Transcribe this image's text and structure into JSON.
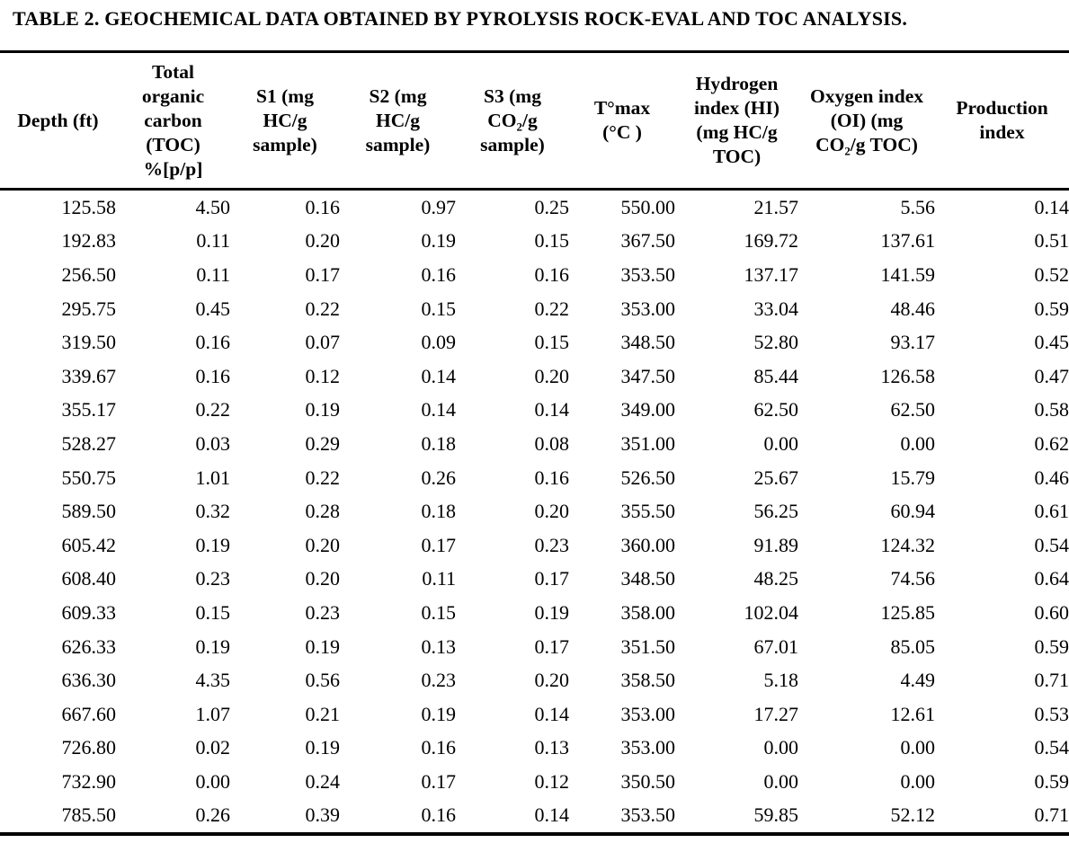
{
  "colors": {
    "background": "#ffffff",
    "text": "#000000",
    "rule": "#000000"
  },
  "table": {
    "title": "TABLE 2. GEOCHEMICAL DATA OBTAINED BY PYROLYSIS ROCK-EVAL AND TOC ANALYSIS.",
    "columns": [
      {
        "label": "Depth (ft)"
      },
      {
        "label": "Total\norganic\ncarbon\n(TOC)\n%[p/p]"
      },
      {
        "label": "S1 (mg\nHC/g\nsample)"
      },
      {
        "label": "S2 (mg\nHC/g\nsample)"
      },
      {
        "label": "S3 (mg\nCO₂/g\nsample)"
      },
      {
        "label": "T°max\n(°C )"
      },
      {
        "label": "Hydrogen\nindex (HI)\n(mg HC/g\nTOC)"
      },
      {
        "label": "Oxygen index\n(OI) (mg\nCO₂/g TOC)"
      },
      {
        "label": "Production\nindex"
      }
    ],
    "rows": [
      [
        "125.58",
        "4.50",
        "0.16",
        "0.97",
        "0.25",
        "550.00",
        "21.57",
        "5.56",
        "0.14"
      ],
      [
        "192.83",
        "0.11",
        "0.20",
        "0.19",
        "0.15",
        "367.50",
        "169.72",
        "137.61",
        "0.51"
      ],
      [
        "256.50",
        "0.11",
        "0.17",
        "0.16",
        "0.16",
        "353.50",
        "137.17",
        "141.59",
        "0.52"
      ],
      [
        "295.75",
        "0.45",
        "0.22",
        "0.15",
        "0.22",
        "353.00",
        "33.04",
        "48.46",
        "0.59"
      ],
      [
        "319.50",
        "0.16",
        "0.07",
        "0.09",
        "0.15",
        "348.50",
        "52.80",
        "93.17",
        "0.45"
      ],
      [
        "339.67",
        "0.16",
        "0.12",
        "0.14",
        "0.20",
        "347.50",
        "85.44",
        "126.58",
        "0.47"
      ],
      [
        "355.17",
        "0.22",
        "0.19",
        "0.14",
        "0.14",
        "349.00",
        "62.50",
        "62.50",
        "0.58"
      ],
      [
        "528.27",
        "0.03",
        "0.29",
        "0.18",
        "0.08",
        "351.00",
        "0.00",
        "0.00",
        "0.62"
      ],
      [
        "550.75",
        "1.01",
        "0.22",
        "0.26",
        "0.16",
        "526.50",
        "25.67",
        "15.79",
        "0.46"
      ],
      [
        "589.50",
        "0.32",
        "0.28",
        "0.18",
        "0.20",
        "355.50",
        "56.25",
        "60.94",
        "0.61"
      ],
      [
        "605.42",
        "0.19",
        "0.20",
        "0.17",
        "0.23",
        "360.00",
        "91.89",
        "124.32",
        "0.54"
      ],
      [
        "608.40",
        "0.23",
        "0.20",
        "0.11",
        "0.17",
        "348.50",
        "48.25",
        "74.56",
        "0.64"
      ],
      [
        "609.33",
        "0.15",
        "0.23",
        "0.15",
        "0.19",
        "358.00",
        "102.04",
        "125.85",
        "0.60"
      ],
      [
        "626.33",
        "0.19",
        "0.19",
        "0.13",
        "0.17",
        "351.50",
        "67.01",
        "85.05",
        "0.59"
      ],
      [
        "636.30",
        "4.35",
        "0.56",
        "0.23",
        "0.20",
        "358.50",
        "5.18",
        "4.49",
        "0.71"
      ],
      [
        "667.60",
        "1.07",
        "0.21",
        "0.19",
        "0.14",
        "353.00",
        "17.27",
        "12.61",
        "0.53"
      ],
      [
        "726.80",
        "0.02",
        "0.19",
        "0.16",
        "0.13",
        "353.00",
        "0.00",
        "0.00",
        "0.54"
      ],
      [
        "732.90",
        "0.00",
        "0.24",
        "0.17",
        "0.12",
        "350.50",
        "0.00",
        "0.00",
        "0.59"
      ],
      [
        "785.50",
        "0.26",
        "0.39",
        "0.16",
        "0.14",
        "353.50",
        "59.85",
        "52.12",
        "0.71"
      ]
    ]
  }
}
